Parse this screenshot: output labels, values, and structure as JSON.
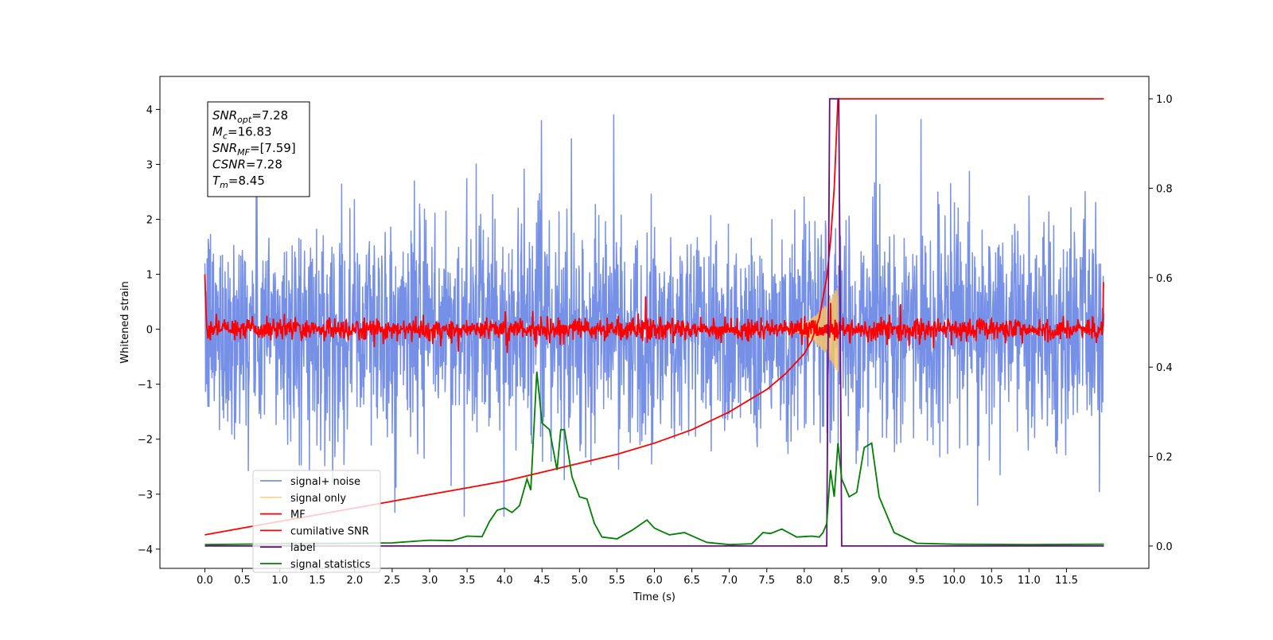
{
  "chart_data": {
    "type": "line",
    "xlabel": "Time (s)",
    "ylabel": "Whitened strain",
    "xlim": [
      -0.6,
      12.6
    ],
    "ylim": [
      -4.35,
      4.6
    ],
    "y2lim": [
      -0.05,
      1.05
    ],
    "x_ticks": [
      "0.0",
      "0.5",
      "1.0",
      "1.5",
      "2.0",
      "2.5",
      "3.0",
      "3.5",
      "4.0",
      "4.5",
      "5.0",
      "5.5",
      "6.0",
      "6.5",
      "7.0",
      "7.5",
      "8.0",
      "8.5",
      "9.0",
      "9.5",
      "10.0",
      "10.5",
      "11.0",
      "11.5"
    ],
    "y_ticks": [
      "−4",
      "−3",
      "−2",
      "−1",
      "0",
      "1",
      "2",
      "3",
      "4"
    ],
    "y2_ticks": [
      "0.0",
      "0.2",
      "0.4",
      "0.6",
      "0.8",
      "1.0"
    ],
    "grid": false,
    "legend_position": "lower-left",
    "annotation": [
      {
        "sym": "SNR",
        "sub": "opt",
        "val": "=7.28"
      },
      {
        "sym": "M",
        "sub": "c",
        "val": "=16.83"
      },
      {
        "sym": "SNR",
        "sub": "MF",
        "val": "=[7.59]"
      },
      {
        "sym": "CSNR",
        "sub": "",
        "val": "=7.28"
      },
      {
        "sym": "T",
        "sub": "m",
        "val": "=8.45"
      }
    ],
    "colors": {
      "signal_noise": "#7590e6",
      "signal_only": "#f5c46b",
      "mf": "#ff0000",
      "cumulative_snr": "#ff0000",
      "label": "#6a0d83",
      "signal_statistics": "#008000"
    },
    "series": [
      {
        "name": "signal+ noise",
        "axis": "left",
        "kind": "noise",
        "x_range": [
          0.0,
          12.0
        ],
        "envelope_typical": 2.2,
        "peak_max": 3.9
      },
      {
        "name": "signal only",
        "axis": "left",
        "kind": "chirp",
        "x_range": [
          7.5,
          8.45
        ],
        "peak": 0.8
      },
      {
        "name": "MF",
        "axis": "left",
        "kind": "noise",
        "x_range": [
          0.0,
          12.0
        ],
        "envelope_typical": 0.25,
        "edge_value": 1.0
      },
      {
        "name": "cumilative SNR",
        "axis": "right",
        "x": [
          0.0,
          0.5,
          1.0,
          1.5,
          2.0,
          2.5,
          3.0,
          3.5,
          4.0,
          4.5,
          5.0,
          5.5,
          6.0,
          6.5,
          7.0,
          7.25,
          7.5,
          7.75,
          8.0,
          8.1,
          8.2,
          8.3,
          8.35,
          8.4,
          8.45,
          9.0,
          10.0,
          11.0,
          12.0
        ],
        "y": [
          0.025,
          0.04,
          0.055,
          0.07,
          0.085,
          0.1,
          0.115,
          0.13,
          0.145,
          0.165,
          0.185,
          0.205,
          0.23,
          0.26,
          0.3,
          0.325,
          0.35,
          0.385,
          0.43,
          0.46,
          0.51,
          0.6,
          0.68,
          0.8,
          1.0,
          1.0,
          1.0,
          1.0,
          1.0
        ]
      },
      {
        "name": "label",
        "axis": "right",
        "x": [
          0.0,
          8.3,
          8.34,
          8.46,
          8.5,
          12.0
        ],
        "y": [
          0.0,
          0.0,
          1.0,
          1.0,
          0.0,
          0.0
        ]
      },
      {
        "name": "signal statistics",
        "axis": "right",
        "x": [
          0.0,
          1.0,
          2.0,
          2.5,
          3.0,
          3.3,
          3.5,
          3.7,
          3.8,
          3.9,
          4.0,
          4.1,
          4.2,
          4.3,
          4.35,
          4.43,
          4.5,
          4.6,
          4.7,
          4.75,
          4.8,
          4.9,
          5.0,
          5.1,
          5.2,
          5.3,
          5.5,
          5.7,
          5.9,
          6.0,
          6.2,
          6.4,
          6.7,
          7.0,
          7.3,
          7.45,
          7.55,
          7.7,
          7.9,
          8.1,
          8.2,
          8.25,
          8.3,
          8.35,
          8.4,
          8.45,
          8.5,
          8.6,
          8.7,
          8.8,
          8.9,
          9.0,
          9.2,
          9.5,
          10.0,
          11.0,
          12.0
        ],
        "y": [
          0.003,
          0.005,
          0.006,
          0.007,
          0.013,
          0.012,
          0.022,
          0.021,
          0.055,
          0.08,
          0.085,
          0.075,
          0.09,
          0.15,
          0.125,
          0.39,
          0.275,
          0.26,
          0.17,
          0.26,
          0.26,
          0.155,
          0.11,
          0.105,
          0.05,
          0.02,
          0.016,
          0.035,
          0.058,
          0.04,
          0.025,
          0.03,
          0.008,
          0.003,
          0.005,
          0.03,
          0.028,
          0.038,
          0.02,
          0.022,
          0.02,
          0.03,
          0.05,
          0.17,
          0.11,
          0.23,
          0.15,
          0.11,
          0.12,
          0.22,
          0.23,
          0.11,
          0.03,
          0.006,
          0.004,
          0.003,
          0.004
        ]
      }
    ]
  }
}
